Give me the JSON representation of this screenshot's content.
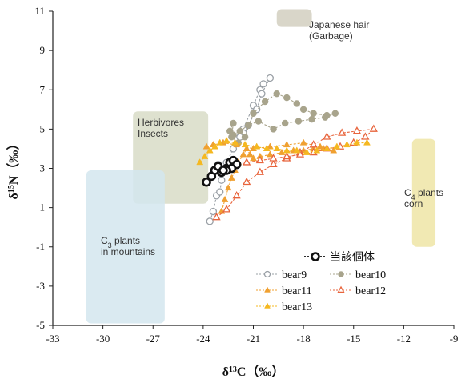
{
  "chart_data": {
    "type": "scatter",
    "xlabel_parts": [
      "δ",
      "13",
      "C（‰）"
    ],
    "ylabel_parts": [
      "δ",
      "15",
      "N（‰）"
    ],
    "xlim": [
      -33,
      -9
    ],
    "ylim": [
      -5,
      11
    ],
    "xticks": [
      -33,
      -30,
      -27,
      -24,
      -21,
      -18,
      -15,
      -12,
      -9
    ],
    "yticks": [
      -5,
      -3,
      -1,
      1,
      3,
      5,
      7,
      9,
      11
    ],
    "grid": false,
    "legend_placement": "bottom-right",
    "regions": [
      {
        "id": "japanese-hair",
        "lines": [
          "Japanese hair",
          "(Garbage)"
        ],
        "x": [
          -19.6,
          -17.5
        ],
        "y": [
          10.2,
          11.1
        ],
        "color": "#d2cfbf"
      },
      {
        "id": "herbivores",
        "lines": [
          "Herbivores",
          "Insects"
        ],
        "x": [
          -28.2,
          -23.7
        ],
        "y": [
          1.2,
          5.9
        ],
        "color": "#d8dcc7"
      },
      {
        "id": "c3-plants",
        "lines": [
          "C3 plants",
          "in mountains"
        ],
        "sub_index": 1,
        "x": [
          -31.0,
          -26.3
        ],
        "y": [
          -4.9,
          2.9
        ],
        "color": "#d4e6ee"
      },
      {
        "id": "c4-plants",
        "lines": [
          "C4 plants",
          "corn"
        ],
        "sub_index": 1,
        "x": [
          -11.5,
          -10.1
        ],
        "y": [
          -1.0,
          4.5
        ],
        "color": "#efe5a6"
      }
    ],
    "series": [
      {
        "name": "当該個体",
        "color": "#111111",
        "marker": "circle-open-bold",
        "x": [
          -23.8,
          -23.5,
          -23.3,
          -23.1,
          -22.9,
          -22.6,
          -22.4,
          -22.2,
          -22.0,
          -22.3,
          -22.6,
          -22.8
        ],
        "y": [
          2.3,
          2.6,
          2.9,
          3.1,
          2.8,
          3.0,
          3.3,
          3.4,
          3.2,
          3.0,
          2.9,
          2.9
        ]
      },
      {
        "name": "bear9",
        "color": "#9aa0a6",
        "marker": "circle-open",
        "x": [
          -23.6,
          -23.4,
          -23.2,
          -23.0,
          -22.9,
          -23.1,
          -23.2,
          -23.0,
          -22.6,
          -22.2,
          -21.6,
          -21.0,
          -20.6,
          -20.4,
          -20.0,
          -20.5,
          -20.8,
          -21.3,
          -21.6,
          -21.8
        ],
        "y": [
          0.3,
          0.8,
          1.6,
          1.8,
          2.4,
          3.2,
          3.0,
          2.8,
          3.3,
          4.0,
          5.0,
          6.2,
          7.0,
          7.3,
          7.6,
          6.8,
          6.0,
          5.2,
          4.8,
          4.6
        ]
      },
      {
        "name": "bear10",
        "color": "#a8a48c",
        "marker": "circle-filled",
        "x": [
          -22.4,
          -22.2,
          -22.3,
          -21.9,
          -21.5,
          -21.0,
          -20.3,
          -19.6,
          -19.0,
          -18.4,
          -18.0,
          -17.4,
          -16.6,
          -16.1,
          -16.7,
          -17.5,
          -18.3,
          -19.1,
          -19.8,
          -20.7,
          -21.3,
          -21.8,
          -22.2
        ],
        "y": [
          4.9,
          5.3,
          4.6,
          4.3,
          4.6,
          5.8,
          6.4,
          6.8,
          6.6,
          6.3,
          6.0,
          5.8,
          5.7,
          5.8,
          5.6,
          5.5,
          5.4,
          5.3,
          5.0,
          5.4,
          5.2,
          4.9,
          4.7
        ]
      },
      {
        "name": "bear11",
        "color": "#f0a030",
        "marker": "triangle-filled",
        "x": [
          -22.9,
          -22.7,
          -22.5,
          -22.3,
          -22.1,
          -21.9,
          -21.6,
          -21.4,
          -21.2,
          -21.0,
          -20.6,
          -20.0,
          -19.3,
          -18.6,
          -18.0,
          -17.4,
          -16.8,
          -16.2,
          -17.0,
          -18.0,
          -19.0,
          -20.0,
          -21.0,
          -22.0,
          -22.8,
          -23.4,
          -23.8
        ],
        "y": [
          0.8,
          1.4,
          2.0,
          2.5,
          2.9,
          3.3,
          3.7,
          4.0,
          3.7,
          3.5,
          3.6,
          3.7,
          3.8,
          3.9,
          3.9,
          4.0,
          4.0,
          3.9,
          4.1,
          4.3,
          4.2,
          4.1,
          4.0,
          4.2,
          4.3,
          4.2,
          4.1
        ]
      },
      {
        "name": "bear12",
        "color": "#e8643c",
        "marker": "triangle-open",
        "x": [
          -23.2,
          -22.6,
          -22.0,
          -21.4,
          -20.6,
          -19.8,
          -19.0,
          -18.2,
          -17.4,
          -16.6,
          -15.7,
          -14.8,
          -13.8,
          -14.3,
          -15.0,
          -15.8,
          -16.6,
          -17.4,
          -18.2,
          -19.0,
          -19.8,
          -20.6,
          -21.4
        ],
        "y": [
          0.5,
          0.9,
          1.6,
          2.3,
          2.8,
          3.2,
          3.5,
          3.8,
          4.2,
          4.6,
          4.8,
          4.9,
          5.0,
          4.6,
          4.3,
          4.1,
          4.0,
          3.8,
          3.7,
          3.6,
          3.5,
          3.4,
          3.3
        ]
      },
      {
        "name": "bear13",
        "color": "#f5b820",
        "marker": "triangle-filled",
        "x": [
          -24.2,
          -23.9,
          -23.6,
          -23.3,
          -23.0,
          -22.6,
          -22.1,
          -21.5,
          -20.8,
          -20.2,
          -19.6,
          -19.0,
          -18.4,
          -17.8,
          -17.2,
          -16.6,
          -16.0,
          -15.4,
          -14.8,
          -14.2
        ],
        "y": [
          3.3,
          3.6,
          3.9,
          4.1,
          4.3,
          4.4,
          4.3,
          4.2,
          4.1,
          4.0,
          4.0,
          3.9,
          3.9,
          3.8,
          3.9,
          4.0,
          4.1,
          4.2,
          4.3,
          4.3
        ]
      }
    ],
    "legend": {
      "title": "当該個体",
      "rows": [
        [
          "bear9",
          "bear10"
        ],
        [
          "bear11",
          "bear12"
        ],
        [
          "bear13"
        ]
      ]
    }
  }
}
